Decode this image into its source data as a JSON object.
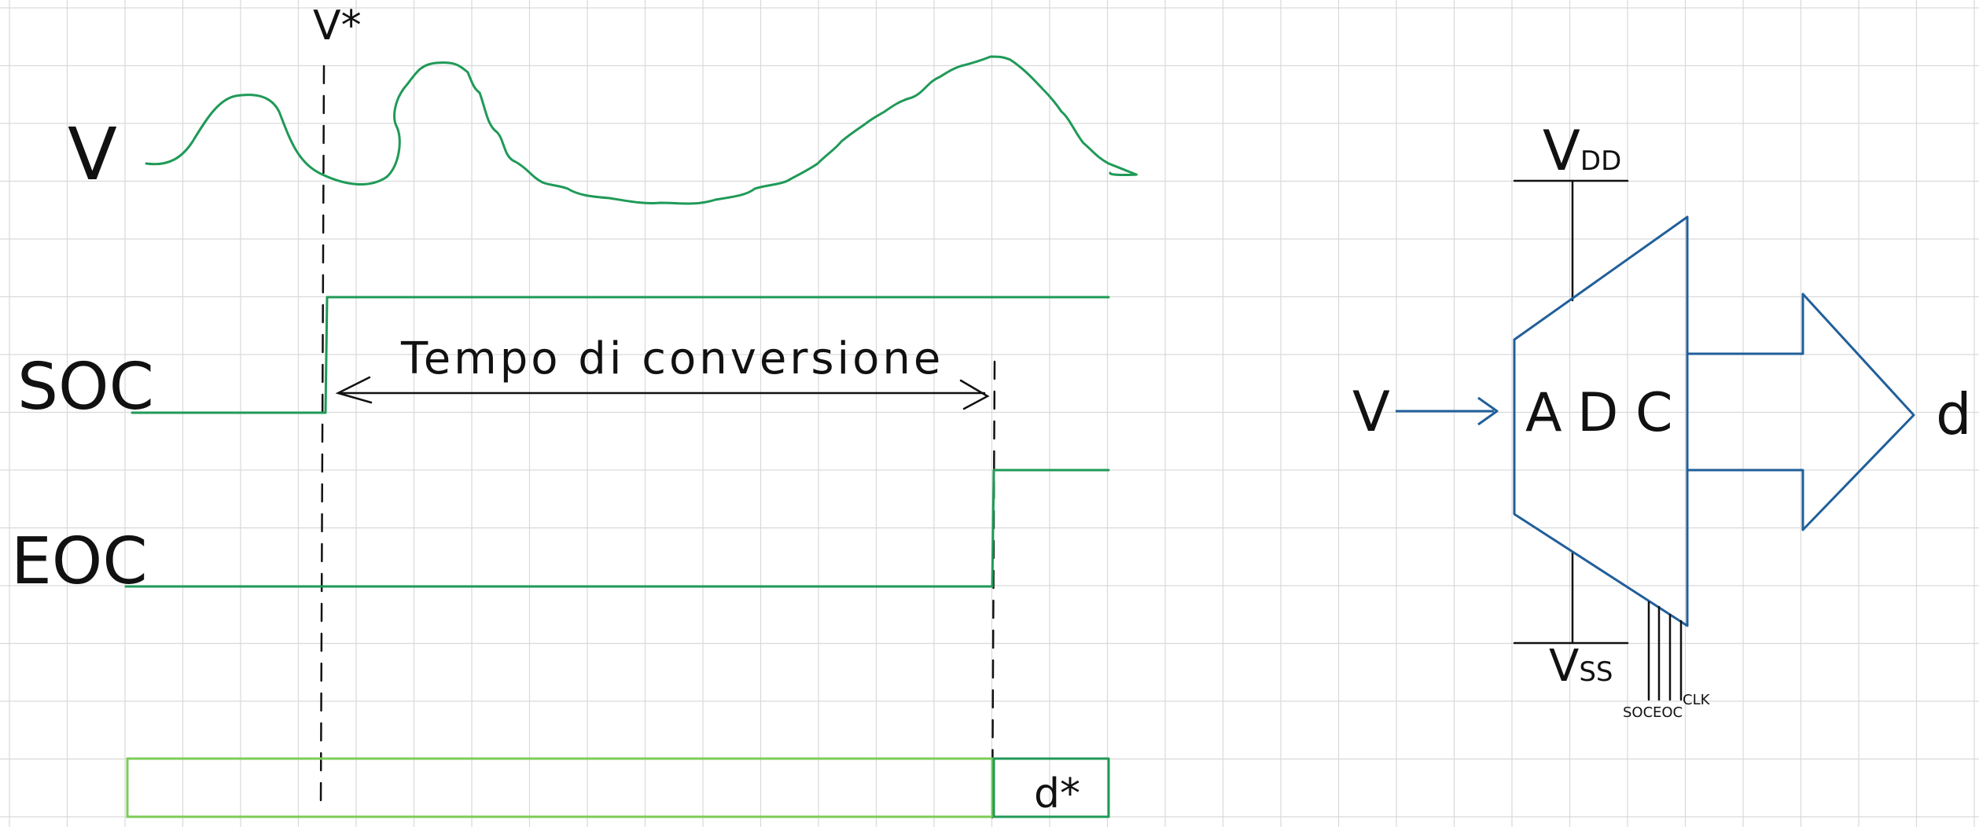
{
  "signals": {
    "v_label": "V",
    "vstar_label": "V*",
    "soc_label": "SOC",
    "eoc_label": "EOC",
    "conversion_label": "Tempo di conversione",
    "dstar_label": "d*"
  },
  "adc": {
    "block_letters": [
      "A",
      "D",
      "C"
    ],
    "input_label": "V",
    "output_label": "d",
    "vdd_main": "V",
    "vdd_sub": "DD",
    "vss_main": "V",
    "vss_sub": "SS",
    "soc_pin": "SOC",
    "eoc_pin": "EOC",
    "clk_pin": "CLK"
  },
  "colors": {
    "signal": "#1f9a57",
    "bus": "#7ccc55",
    "adc": "#215f9a",
    "ink": "#111111",
    "grid": "#d9d9d9"
  }
}
